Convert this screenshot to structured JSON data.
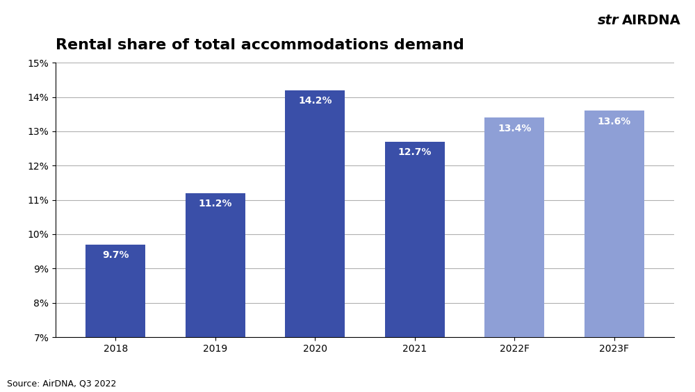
{
  "chart_data": {
    "type": "bar",
    "title": "Rental share of total accommodations demand",
    "categories": [
      "2018",
      "2019",
      "2020",
      "2021",
      "2022F",
      "2023F"
    ],
    "values": [
      9.7,
      11.2,
      14.2,
      12.7,
      13.4,
      13.6
    ],
    "value_labels": [
      "9.7%",
      "11.2%",
      "14.2%",
      "12.7%",
      "13.4%",
      "13.6%"
    ],
    "data_labels": true,
    "colors": [
      "#3a4fa8",
      "#3a4fa8",
      "#3a4fa8",
      "#3a4fa8",
      "#8e9fd6",
      "#8e9fd6"
    ],
    "ylim": [
      7,
      15
    ],
    "yticks": [
      {
        "value": 7,
        "label": "7%"
      },
      {
        "value": 8,
        "label": "8%"
      },
      {
        "value": 9,
        "label": "9%"
      },
      {
        "value": 10,
        "label": "10%"
      },
      {
        "value": 11,
        "label": "11%"
      },
      {
        "value": 12,
        "label": "12%"
      },
      {
        "value": 13,
        "label": "13%"
      },
      {
        "value": 14,
        "label": "14%"
      },
      {
        "value": 15,
        "label": "15%"
      }
    ],
    "grid": true,
    "source": "Source: AirDNA, Q3 2022",
    "annotations": [
      "str",
      "AIRDNA"
    ]
  }
}
